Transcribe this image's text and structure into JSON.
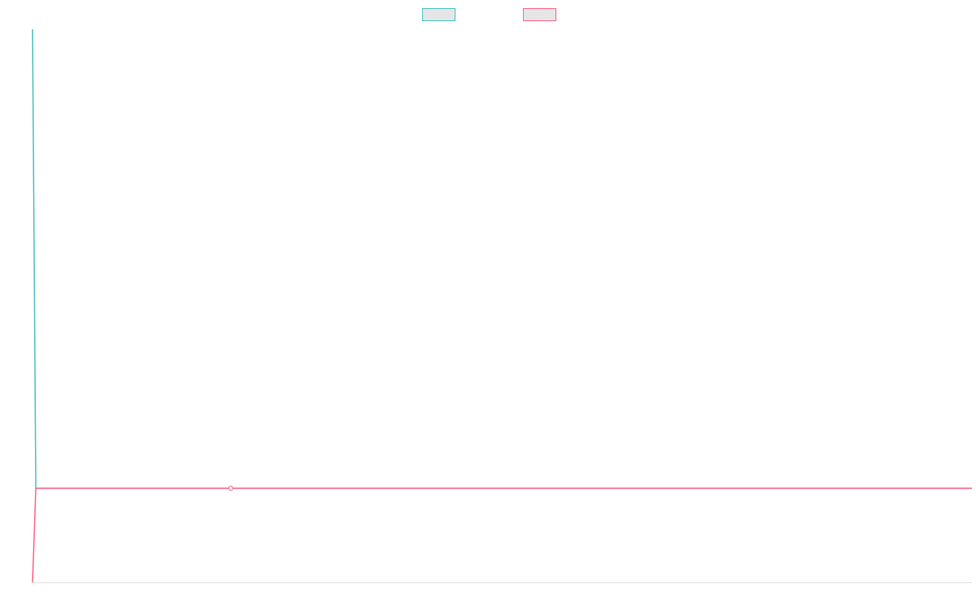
{
  "chart_data": {
    "type": "line",
    "x": [
      0,
      0.35,
      21.1,
      100
    ],
    "series": [
      {
        "color": "#4bc0c0",
        "values": [
          100,
          17,
          17,
          17
        ]
      },
      {
        "color": "#ff6384",
        "values": [
          0,
          17,
          17,
          17
        ]
      }
    ],
    "xlim": [
      0,
      100
    ],
    "ylim": [
      0,
      100
    ],
    "highlighted_point": 2,
    "legend": "top"
  }
}
